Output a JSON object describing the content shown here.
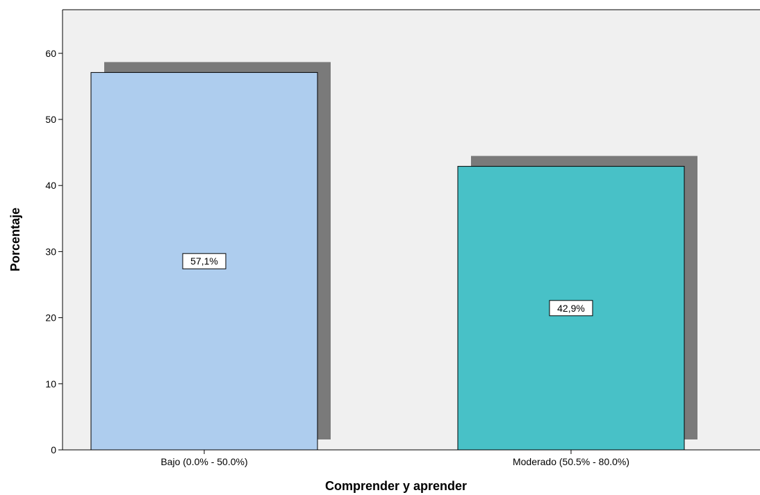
{
  "chart_data": {
    "type": "bar",
    "title": "",
    "xlabel": "Comprender y aprender",
    "ylabel": "Porcentaje",
    "categories": [
      "Bajo (0.0% - 50.0%)",
      "Moderado (50.5% - 80.0%)"
    ],
    "values": [
      57.1,
      42.9
    ],
    "data_labels": [
      "57,1%",
      "42,9%"
    ],
    "yticks": [
      "0",
      "10",
      "20",
      "30",
      "40",
      "50",
      "60"
    ],
    "ylim": [
      0,
      66
    ],
    "grid": false,
    "legend": "none",
    "bar_colors": [
      "#aecdee",
      "#48c1c7"
    ],
    "shadow_color": "#7a7a7a",
    "plot_background": "#f0f0f0"
  }
}
